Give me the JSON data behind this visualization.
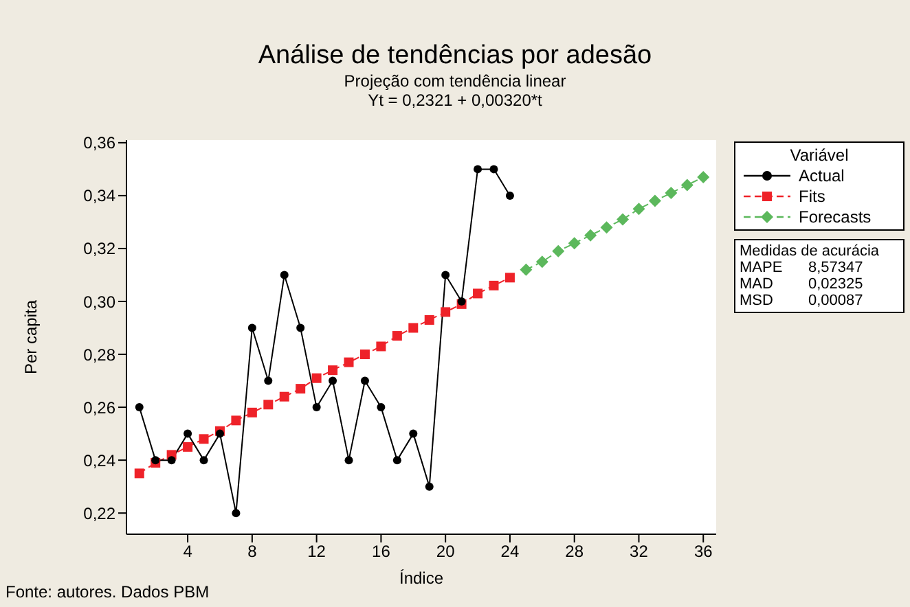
{
  "chart_data": {
    "type": "line",
    "title": "Análise de tendências por adesão",
    "subtitle": "Projeção com tendência linear",
    "xlabel": "Índice",
    "ylabel": "Per capita",
    "legend_title": "Variável",
    "annotations": [
      "Yt = 0,2321 + 0,00320*t",
      "Fonte: autores. Dados PBM",
      "Medidas de acurácia",
      "MAPE",
      "8,57347",
      "MAD",
      "0,02325",
      "MSD",
      "0,00087"
    ],
    "series": [
      {
        "name": "Actual",
        "color": "#000000",
        "marker": "circle",
        "line_style": "solid",
        "x": [
          1,
          2,
          3,
          4,
          5,
          6,
          7,
          8,
          9,
          10,
          11,
          12,
          13,
          14,
          15,
          16,
          17,
          18,
          19,
          20,
          21,
          22,
          23,
          24
        ],
        "values": [
          0.26,
          0.24,
          0.24,
          0.25,
          0.24,
          0.25,
          0.22,
          0.29,
          0.27,
          0.31,
          0.29,
          0.26,
          0.27,
          0.24,
          0.27,
          0.26,
          0.24,
          0.25,
          0.23,
          0.31,
          0.3,
          0.35,
          0.35,
          0.34
        ]
      },
      {
        "name": "Fits",
        "color": "#ee2229",
        "marker": "square",
        "line_style": "dashed",
        "x": [
          1,
          2,
          3,
          4,
          5,
          6,
          7,
          8,
          9,
          10,
          11,
          12,
          13,
          14,
          15,
          16,
          17,
          18,
          19,
          20,
          21,
          22,
          23,
          24
        ],
        "values": [
          0.235,
          0.239,
          0.242,
          0.245,
          0.248,
          0.251,
          0.255,
          0.258,
          0.261,
          0.264,
          0.267,
          0.271,
          0.274,
          0.277,
          0.28,
          0.283,
          0.287,
          0.29,
          0.293,
          0.296,
          0.299,
          0.303,
          0.306,
          0.309
        ]
      },
      {
        "name": "Forecasts",
        "color": "#5cb85c",
        "marker": "diamond",
        "line_style": "dashed",
        "x": [
          25,
          26,
          27,
          28,
          29,
          30,
          31,
          32,
          33,
          34,
          35,
          36
        ],
        "values": [
          0.312,
          0.315,
          0.319,
          0.322,
          0.325,
          0.328,
          0.331,
          0.335,
          0.338,
          0.341,
          0.344,
          0.347
        ]
      }
    ],
    "xlim": [
      0.2,
      36.8
    ],
    "xticks": [
      4,
      8,
      12,
      16,
      20,
      24,
      28,
      32,
      36
    ],
    "ylim": [
      0.212,
      0.361
    ],
    "yticks": [
      {
        "value": 0.22,
        "label": "0,22"
      },
      {
        "value": 0.24,
        "label": "0,24"
      },
      {
        "value": 0.26,
        "label": "0,26"
      },
      {
        "value": 0.28,
        "label": "0,28"
      },
      {
        "value": 0.3,
        "label": "0,30"
      },
      {
        "value": 0.32,
        "label": "0,32"
      },
      {
        "value": 0.34,
        "label": "0,34"
      },
      {
        "value": 0.36,
        "label": "0,36"
      }
    ],
    "grid": false,
    "legend": "right"
  }
}
